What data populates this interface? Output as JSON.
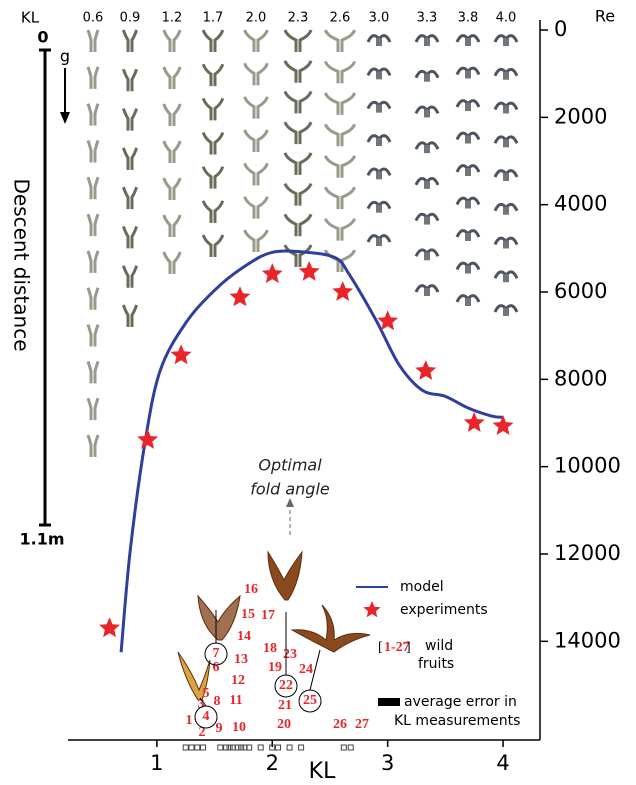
{
  "chart_data": {
    "type": "line",
    "xlabel": "KL",
    "ylabel": "Re",
    "xlim": [
      0.23,
      4.32
    ],
    "ylim": [
      16260,
      -230
    ],
    "xticks": [
      1,
      2,
      3,
      4
    ],
    "yticks": [
      0,
      2000,
      4000,
      6000,
      8000,
      10000,
      12000,
      14000
    ],
    "series": [
      {
        "name": "model",
        "color": "#2f3f9e",
        "marker": "none",
        "x": [
          0.69,
          0.77,
          0.9,
          1.03,
          1.25,
          1.5,
          1.75,
          2.0,
          2.3,
          2.55,
          2.67,
          2.9,
          3.1,
          3.3,
          3.5,
          3.7,
          3.9,
          4.0
        ],
        "values": [
          14250,
          11900,
          9400,
          7790,
          6710,
          5960,
          5430,
          5090,
          5090,
          5220,
          5610,
          6650,
          7670,
          8250,
          8390,
          8660,
          8840,
          8870
        ]
      },
      {
        "name": "experiments",
        "color": "#e8262a",
        "marker": "star",
        "x": [
          0.59,
          0.92,
          1.21,
          1.72,
          2.0,
          2.32,
          2.61,
          3.0,
          3.33,
          3.75,
          4.0
        ],
        "values": [
          13700,
          9390,
          7450,
          6120,
          5590,
          5540,
          6000,
          6670,
          7810,
          9000,
          9070
        ]
      }
    ],
    "top_kl_header": "KL",
    "top_kl_labels": [
      "0.6",
      "0.9",
      "1.2",
      "1.7",
      "2.0",
      "2.3",
      "2.6",
      "3.0",
      "3.3",
      "3.8",
      "4.0"
    ],
    "descent": {
      "label": "Descent distance",
      "start": "0",
      "end": "1.1m",
      "gravity": "g"
    },
    "annotation": [
      "Optimal",
      "fold angle"
    ],
    "wild_fruits": {
      "labels": [
        "1",
        "2",
        "3",
        "4",
        "5",
        "6",
        "7",
        "8",
        "9",
        "10",
        "11",
        "12",
        "13",
        "14",
        "15",
        "16",
        "17",
        "18",
        "19",
        "20",
        "21",
        "22",
        "23",
        "24",
        "25",
        "26",
        "27"
      ],
      "kl": [
        1.25,
        1.3,
        1.35,
        1.4,
        1.55,
        1.6,
        1.63,
        1.66,
        1.7,
        1.73,
        1.76,
        1.8,
        1.9,
        2.0,
        2.05,
        2.15,
        2.25,
        2.62,
        2.68
      ],
      "legend_open": "[",
      "legend_range": "1-27",
      "legend_close": "]",
      "legend_text": [
        "wild",
        "fruits"
      ]
    },
    "error_legend": [
      "average error in",
      "KL measurements"
    ]
  }
}
